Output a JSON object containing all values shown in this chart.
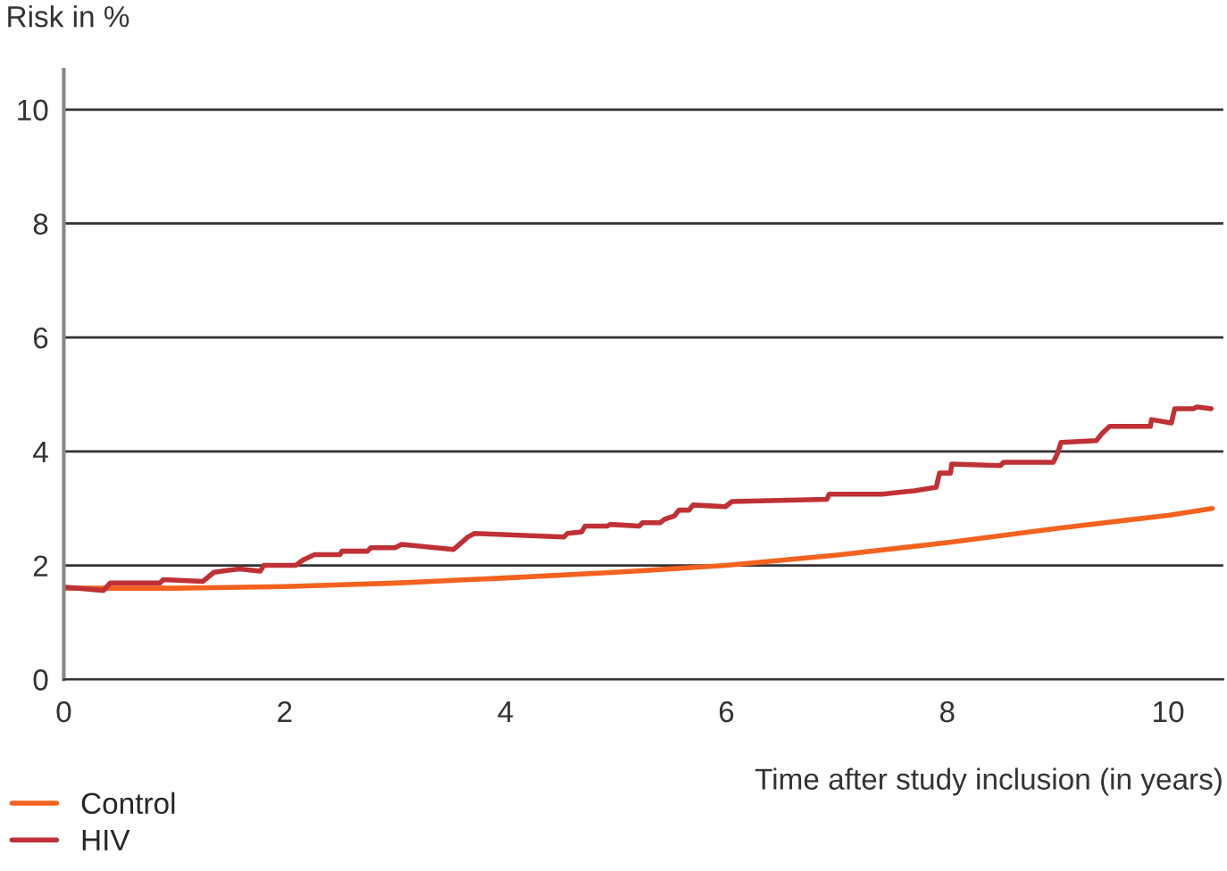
{
  "chart_data": {
    "type": "line",
    "xlabel": "Time after study inclusion (in years)",
    "ylabel": "Risk in %",
    "xlim": [
      0,
      10.5
    ],
    "ylim": [
      0,
      10.7
    ],
    "xticks": [
      0,
      2,
      4,
      6,
      8,
      10
    ],
    "yticks": [
      0,
      2,
      4,
      6,
      8,
      10
    ],
    "grid": "y",
    "legend": "bottom left",
    "marker": "none",
    "line_style": "solid",
    "series": [
      {
        "name": "Control",
        "color": "#f4621f",
        "x": [
          0,
          1,
          2,
          3,
          4,
          5,
          6,
          7,
          8,
          9,
          10,
          10.4
        ],
        "values": [
          1.6,
          1.6,
          1.63,
          1.69,
          1.78,
          1.88,
          2.0,
          2.18,
          2.4,
          2.65,
          2.88,
          3.0
        ]
      },
      {
        "name": "HIV",
        "color": "#bf3135",
        "x": [
          0,
          0.36,
          0.42,
          0.87,
          0.9,
          1.26,
          1.36,
          1.59,
          1.78,
          1.81,
          2.1,
          2.17,
          2.27,
          2.5,
          2.52,
          2.75,
          2.78,
          3.0,
          3.06,
          3.53,
          3.66,
          3.72,
          4.53,
          4.56,
          4.69,
          4.72,
          4.92,
          4.95,
          5.21,
          5.24,
          5.4,
          5.44,
          5.53,
          5.57,
          5.66,
          5.7,
          5.99,
          6.05,
          6.91,
          6.93,
          7.41,
          7.7,
          7.9,
          7.93,
          8.03,
          8.04,
          8.48,
          8.51,
          8.96,
          9.0,
          9.03,
          9.35,
          9.4,
          9.47,
          9.84,
          9.85,
          10.03,
          10.06,
          10.23,
          10.26,
          10.39
        ],
        "values": [
          1.62,
          1.56,
          1.69,
          1.69,
          1.75,
          1.72,
          1.88,
          1.94,
          1.9,
          2.0,
          2.0,
          2.1,
          2.19,
          2.19,
          2.25,
          2.25,
          2.31,
          2.31,
          2.37,
          2.28,
          2.5,
          2.56,
          2.5,
          2.56,
          2.59,
          2.69,
          2.69,
          2.72,
          2.69,
          2.75,
          2.75,
          2.81,
          2.87,
          2.97,
          2.97,
          3.06,
          3.03,
          3.12,
          3.16,
          3.25,
          3.25,
          3.31,
          3.37,
          3.62,
          3.62,
          3.78,
          3.75,
          3.81,
          3.81,
          3.97,
          4.16,
          4.19,
          4.31,
          4.44,
          4.44,
          4.56,
          4.5,
          4.75,
          4.75,
          4.78,
          4.75
        ]
      }
    ]
  }
}
